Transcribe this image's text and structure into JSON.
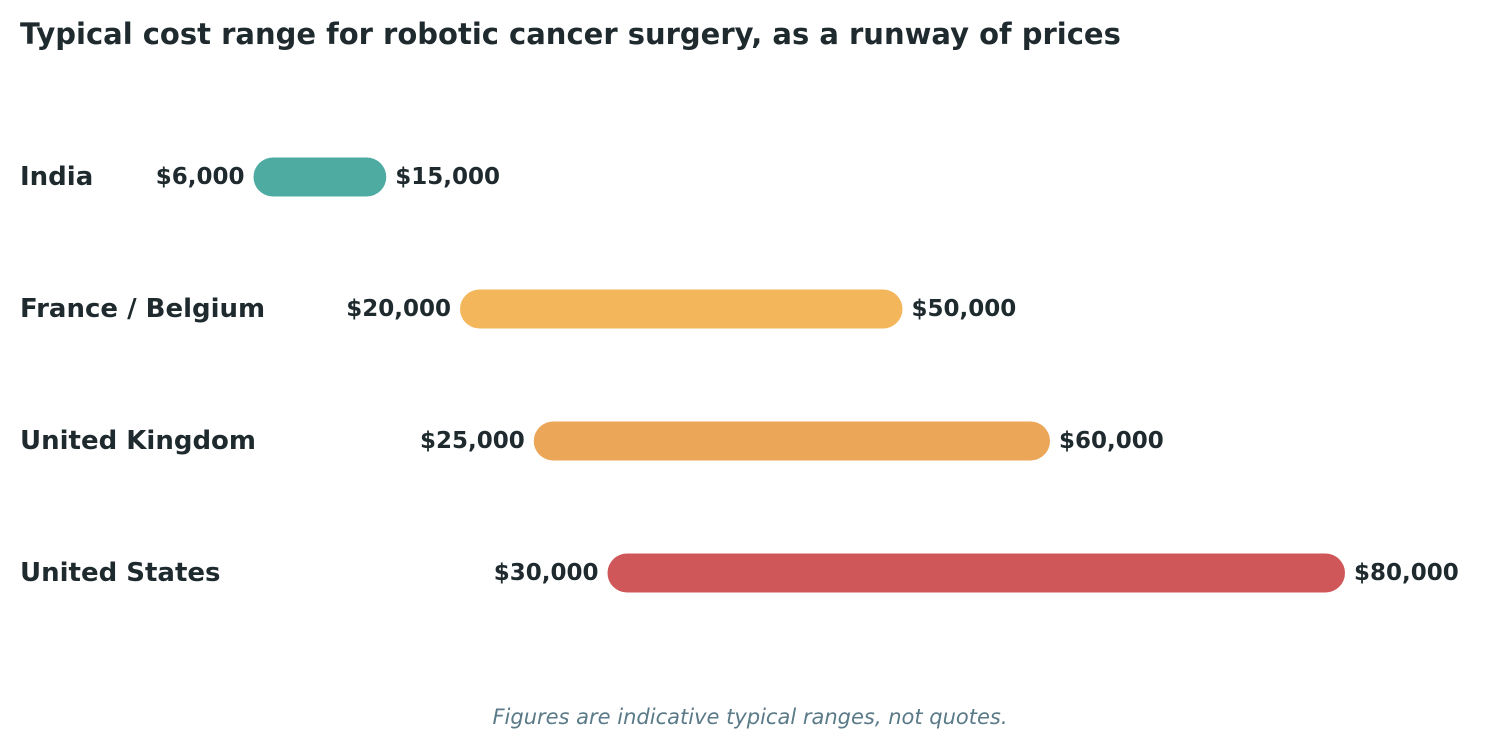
{
  "chart_data": {
    "type": "bar",
    "subtype": "floating-range",
    "title": "Typical cost range for robotic cancer surgery, as a runway of prices",
    "footnote": "Figures are indicative typical ranges, not quotes.",
    "orientation": "horizontal",
    "xlim": [
      0,
      80000
    ],
    "grid": false,
    "legend": "none",
    "categories": [
      "India",
      "France / Belgium",
      "United Kingdom",
      "United States"
    ],
    "ranges": [
      {
        "category": "India",
        "low": 6000,
        "high": 15000,
        "low_label": "$6,000",
        "high_label": "$15,000",
        "color": "#4eaba1"
      },
      {
        "category": "France / Belgium",
        "low": 20000,
        "high": 50000,
        "low_label": "$20,000",
        "high_label": "$50,000",
        "color": "#f3b65a"
      },
      {
        "category": "United Kingdom",
        "low": 25000,
        "high": 60000,
        "low_label": "$25,000",
        "high_label": "$60,000",
        "color": "#eba658"
      },
      {
        "category": "United States",
        "low": 30000,
        "high": 80000,
        "low_label": "$30,000",
        "high_label": "$80,000",
        "color": "#cf5759"
      }
    ]
  }
}
